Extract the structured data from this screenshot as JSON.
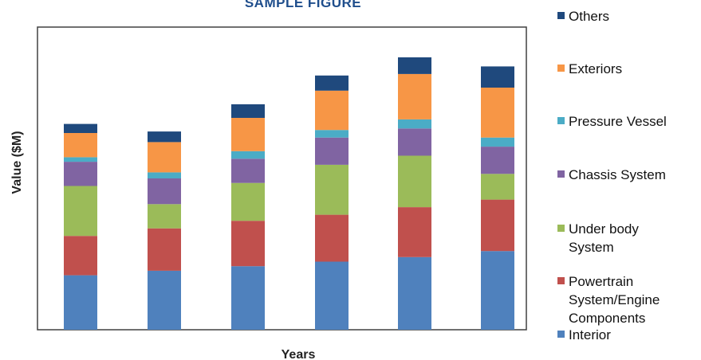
{
  "chart_data": {
    "type": "bar",
    "stacked": true,
    "title": "SAMPLE FIGURE",
    "xlabel": "Years",
    "ylabel": "Value ($M)",
    "categories": [
      "",
      "",
      "",
      "",
      "",
      ""
    ],
    "ylim": [
      0,
      100
    ],
    "grid": false,
    "legend_position": "right",
    "series": [
      {
        "name": "Interior",
        "color": "#4F81BD",
        "values": [
          18,
          19.5,
          21,
          22.5,
          24,
          26
        ]
      },
      {
        "name": "Powertrain System/Engine Components",
        "color": "#C0504D",
        "values": [
          13,
          14,
          15,
          15.5,
          16.5,
          17
        ]
      },
      {
        "name": "Under body System",
        "color": "#9BBB59",
        "values": [
          16.5,
          8,
          12.5,
          16.5,
          17,
          8.5
        ]
      },
      {
        "name": "Chassis System",
        "color": "#8064A2",
        "values": [
          8,
          8.5,
          8,
          9,
          9,
          9
        ]
      },
      {
        "name": "Pressure Vessel",
        "color": "#4BACC6",
        "values": [
          1.5,
          2,
          2.5,
          2.5,
          3,
          3
        ]
      },
      {
        "name": "Exteriors",
        "color": "#F79646",
        "values": [
          8,
          10,
          11,
          13,
          15,
          16.5
        ]
      },
      {
        "name": "Others",
        "color": "#1F497D",
        "values": [
          3,
          3.5,
          4.5,
          5,
          5.5,
          7
        ]
      }
    ]
  }
}
